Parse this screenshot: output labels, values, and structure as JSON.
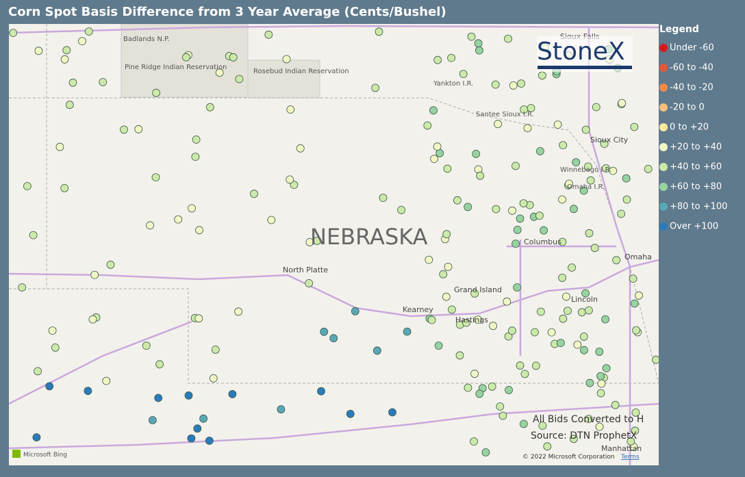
{
  "title": "Corn Spot Basis Difference from 3 Year Average (Cents/Bushel)",
  "legend": {
    "title": "Legend",
    "items": [
      {
        "label": "Under -60",
        "color": "#d7191c"
      },
      {
        "label": "-60 to -40",
        "color": "#e8553a"
      },
      {
        "label": "-40 to -20",
        "color": "#f08a4b"
      },
      {
        "label": "-20 to 0",
        "color": "#f9bf7a"
      },
      {
        "label": "0 to +20",
        "color": "#fde99c"
      },
      {
        "label": "+20 to +40",
        "color": "#f1f7c4"
      },
      {
        "label": "+40 to +60",
        "color": "#cde9a9"
      },
      {
        "label": "+60 to +80",
        "color": "#97d3a0"
      },
      {
        "label": "+80 to +100",
        "color": "#5aa8b6"
      },
      {
        "label": "Over +100",
        "color": "#2b7bba"
      }
    ]
  },
  "logo": "StoneX",
  "map_labels": [
    "Badlands N.P.",
    "Pine Ridge Indian Reservation",
    "Rosebud Indian Reservation",
    "Yankton I.R.",
    "Santee Sioux I.R.",
    "Sioux Falls",
    "Sioux City",
    "Winnebago I.R.",
    "Omaha I.R.",
    "NEBRASKA",
    "North Platte",
    "Columbus",
    "Omaha",
    "Grand Island",
    "Kearney",
    "Hastings",
    "Lincoln",
    "Manhattan"
  ],
  "notes": [
    "All Bids Converted to H",
    "Source: DTN ProphetX"
  ],
  "attribution": {
    "provider": "Microsoft Bing",
    "copyright": "© 2022 Microsoft Corporation",
    "terms": "Terms"
  }
}
